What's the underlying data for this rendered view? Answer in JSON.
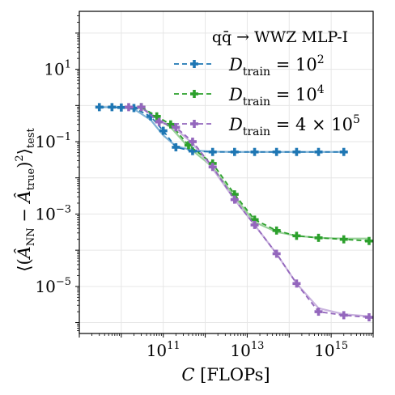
{
  "chart_data": {
    "type": "line",
    "title": "",
    "xlabel": "C [FLOPs]",
    "ylabel": "⟨(Â_NN − Â_true)²⟩_test",
    "xscale": "log",
    "yscale": "log",
    "xlim": [
      1000000000.0,
      1e+16
    ],
    "ylim": [
      5e-07,
      400
    ],
    "grid": true,
    "legend": {
      "placement": "top-right",
      "title": "qq̄ → WWZ MLP-I"
    },
    "x_ticks": [
      {
        "mant": "10",
        "exp": "11",
        "value": 100000000000.0
      },
      {
        "mant": "10",
        "exp": "13",
        "value": 10000000000000.0
      },
      {
        "mant": "10",
        "exp": "15",
        "value": 1000000000000000.0
      }
    ],
    "y_ticks": [
      {
        "mant": "10",
        "exp": "1",
        "value": 10
      },
      {
        "mant": "10",
        "exp": "−1",
        "value": 0.1
      },
      {
        "mant": "10",
        "exp": "−3",
        "value": 0.001
      },
      {
        "mant": "10",
        "exp": "−5",
        "value": 1e-05
      }
    ],
    "series": [
      {
        "name": "D_train = 10^2",
        "label_main": "D",
        "label_sub": "train",
        "label_rest": " = 10",
        "label_sup": "2",
        "color": "#1f77b4",
        "fit_color": "#7fb2d6",
        "x": [
          3000000000.0,
          6000000000.0,
          10000000000.0,
          20000000000.0,
          50000000000.0,
          100000000000.0,
          200000000000.0,
          500000000000.0,
          1500000000000.0,
          5000000000000.0,
          15000000000000.0,
          50000000000000.0,
          150000000000000.0,
          500000000000000.0,
          2000000000000000.0
        ],
        "y": [
          0.9,
          0.9,
          0.88,
          0.85,
          0.5,
          0.2,
          0.07,
          0.055,
          0.052,
          0.052,
          0.052,
          0.052,
          0.052,
          0.052,
          0.052
        ],
        "fit_y": [
          0.9,
          0.9,
          0.88,
          0.8,
          0.4,
          0.15,
          0.075,
          0.058,
          0.053,
          0.052,
          0.052,
          0.052,
          0.052,
          0.052,
          0.052
        ]
      },
      {
        "name": "D_train = 10^4",
        "label_main": "D",
        "label_sub": "train",
        "label_rest": " = 10",
        "label_sup": "4",
        "color": "#2ca02c",
        "fit_color": "#98d098",
        "x": [
          30000000000.0,
          70000000000.0,
          150000000000.0,
          400000000000.0,
          1500000000000.0,
          5000000000000.0,
          15000000000000.0,
          50000000000000.0,
          150000000000000.0,
          500000000000000.0,
          2000000000000000.0,
          8000000000000000.0
        ],
        "y": [
          0.9,
          0.5,
          0.3,
          0.08,
          0.025,
          0.0035,
          0.0007,
          0.00035,
          0.00025,
          0.00022,
          0.0002,
          0.00018
        ],
        "fit_y": [
          0.9,
          0.45,
          0.25,
          0.07,
          0.02,
          0.003,
          0.0006,
          0.00032,
          0.00025,
          0.00022,
          0.00021,
          0.00021
        ]
      },
      {
        "name": "D_train = 4 × 10^5",
        "label_main": "D",
        "label_sub": "train",
        "label_rest": " = 4 × 10",
        "label_sup": "5",
        "color": "#9467bd",
        "fit_color": "#c9b3de",
        "x": [
          15000000000.0,
          30000000000.0,
          80000000000.0,
          200000000000.0,
          500000000000.0,
          1500000000000.0,
          5000000000000.0,
          15000000000000.0,
          50000000000000.0,
          150000000000000.0,
          500000000000000.0,
          2000000000000000.0,
          8000000000000000.0
        ],
        "y": [
          0.9,
          0.9,
          0.35,
          0.25,
          0.1,
          0.02,
          0.0025,
          0.0005,
          8e-05,
          1.2e-05,
          2e-06,
          1.6e-06,
          1.4e-06
        ],
        "fit_y": [
          0.9,
          0.85,
          0.4,
          0.22,
          0.09,
          0.018,
          0.0025,
          0.0005,
          8e-05,
          1.2e-05,
          2.5e-06,
          1.7e-06,
          1.5e-06
        ]
      }
    ]
  }
}
